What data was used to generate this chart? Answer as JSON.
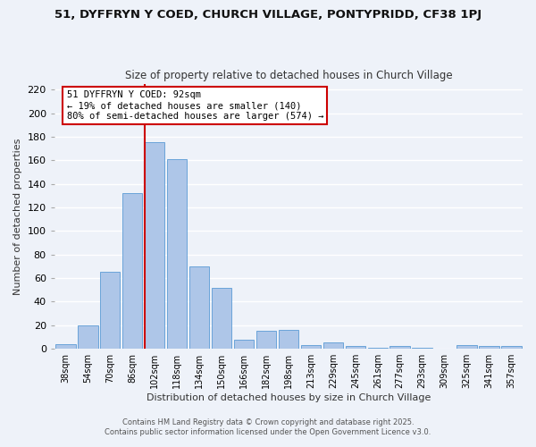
{
  "title": "51, DYFFRYN Y COED, CHURCH VILLAGE, PONTYPRIDD, CF38 1PJ",
  "subtitle": "Size of property relative to detached houses in Church Village",
  "xlabel": "Distribution of detached houses by size in Church Village",
  "ylabel": "Number of detached properties",
  "categories": [
    "38sqm",
    "54sqm",
    "70sqm",
    "86sqm",
    "102sqm",
    "118sqm",
    "134sqm",
    "150sqm",
    "166sqm",
    "182sqm",
    "198sqm",
    "213sqm",
    "229sqm",
    "245sqm",
    "261sqm",
    "277sqm",
    "293sqm",
    "309sqm",
    "325sqm",
    "341sqm",
    "357sqm"
  ],
  "values": [
    4,
    20,
    65,
    132,
    175,
    161,
    70,
    52,
    8,
    15,
    16,
    3,
    5,
    2,
    1,
    2,
    1,
    0,
    3,
    2,
    2
  ],
  "bar_color": "#aec6e8",
  "bar_edgecolor": "#5b9bd5",
  "vline_color": "#cc0000",
  "annotation_line1": "51 DYFFRYN Y COED: 92sqm",
  "annotation_line2": "← 19% of detached houses are smaller (140)",
  "annotation_line3": "80% of semi-detached houses are larger (574) →",
  "annotation_box_color": "#cc0000",
  "bg_color": "#eef2f9",
  "grid_color": "#ffffff",
  "ylim": [
    0,
    225
  ],
  "yticks": [
    0,
    20,
    40,
    60,
    80,
    100,
    120,
    140,
    160,
    180,
    200,
    220
  ],
  "footer_line1": "Contains HM Land Registry data © Crown copyright and database right 2025.",
  "footer_line2": "Contains public sector information licensed under the Open Government Licence v3.0.",
  "title_fontsize": 9.5,
  "subtitle_fontsize": 8.5
}
